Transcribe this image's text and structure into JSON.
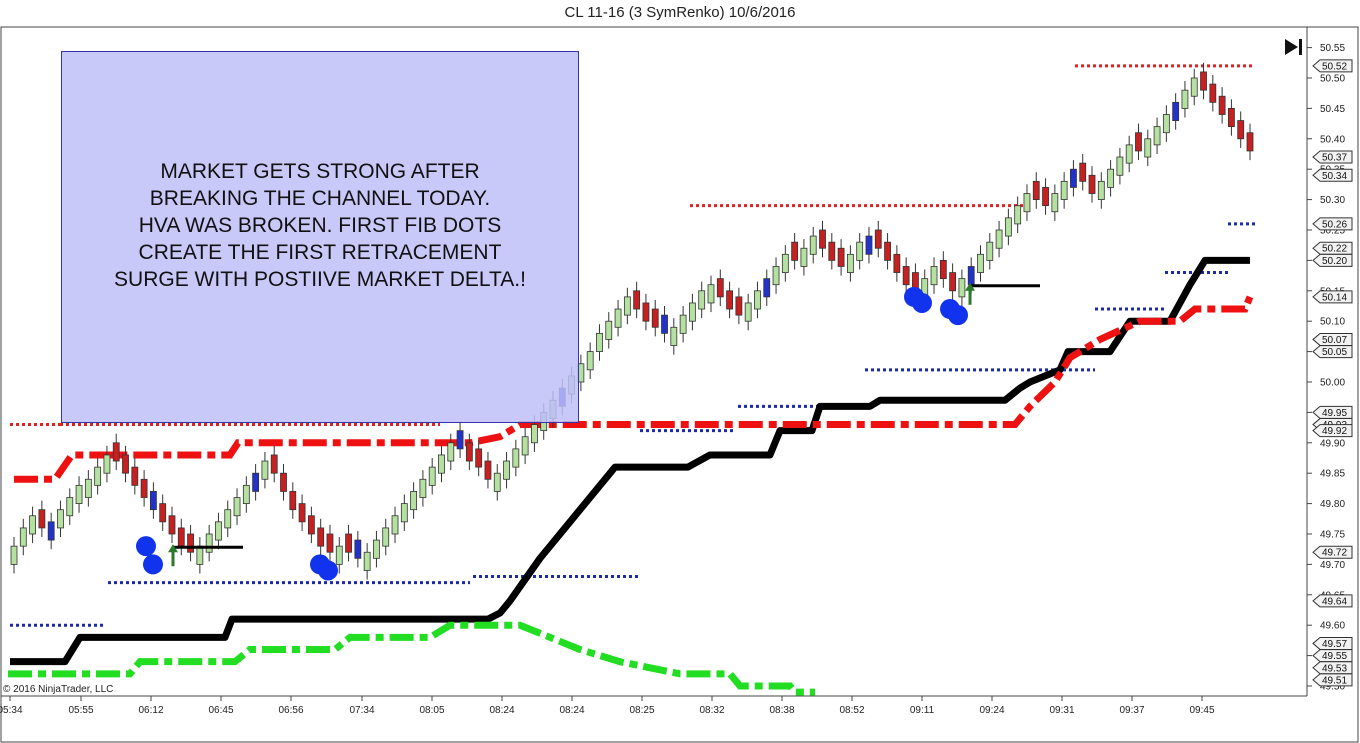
{
  "title": "CL 11-16 (3 SymRenko)  10/6/2016",
  "annotation": [
    "MARKET GETS STRONG AFTER",
    "BREAKING THE CHANNEL TODAY.",
    "HVA WAS BROKEN. FIRST FIB DOTS",
    "CREATE THE FIRST RETRACEMENT",
    "SURGE WITH POSTIIVE MARKET DELTA.!"
  ],
  "copyright": "© 2016 NinjaTrader, LLC",
  "controls": {
    "goto_end_icon": "skip-to-end-icon"
  },
  "colors": {
    "up_candle": "#b4e0a0",
    "down_candle": "#c62020",
    "neutral_candle": "#2233cc",
    "trend_line": "#000000",
    "red_trail": "#ee1111",
    "green_trail": "#22dd22",
    "level_red": "#dd2222",
    "level_blue": "#1a2aaa",
    "fib_dot": "#1133ee",
    "arrow": "#2a7a2a"
  },
  "chart_data": {
    "type": "candlestick",
    "instrument": "CL 11-16",
    "bar_type": "3 SymRenko",
    "date": "10/6/2016",
    "y_axis": {
      "range": [
        49.485,
        50.575
      ],
      "ticks": [
        "49.50",
        "49.55",
        "49.60",
        "49.65",
        "49.70",
        "49.75",
        "49.80",
        "49.85",
        "49.90",
        "49.95",
        "50.00",
        "50.05",
        "50.10",
        "50.15",
        "50.20",
        "50.25",
        "50.30",
        "50.35",
        "50.40",
        "50.45",
        "50.50",
        "50.55"
      ],
      "price_markers": [
        "50.52",
        "50.37",
        "50.34",
        "50.26",
        "50.22",
        "50.20",
        "50.14",
        "50.07",
        "50.05",
        "49.95",
        "49.93",
        "49.92",
        "49.72",
        "49.64",
        "49.57",
        "49.55",
        "49.53",
        "49.51"
      ]
    },
    "x_axis": {
      "labels": [
        "05:34",
        "05:55",
        "06:12",
        "06:45",
        "06:56",
        "07:34",
        "08:05",
        "08:24",
        "08:24",
        "08:25",
        "08:32",
        "08:38",
        "08:52",
        "09:11",
        "09:24",
        "09:31",
        "09:37",
        "09:45"
      ]
    },
    "closes": [
      49.73,
      49.76,
      49.78,
      49.76,
      49.77,
      49.79,
      49.81,
      49.83,
      49.84,
      49.86,
      49.88,
      49.87,
      49.85,
      49.83,
      49.81,
      49.79,
      49.77,
      49.75,
      49.73,
      49.72,
      49.73,
      49.75,
      49.77,
      49.79,
      49.81,
      49.83,
      49.85,
      49.87,
      49.85,
      49.82,
      49.79,
      49.77,
      49.75,
      49.73,
      49.72,
      49.73,
      49.72,
      49.71,
      49.72,
      49.74,
      49.76,
      49.78,
      49.8,
      49.82,
      49.84,
      49.86,
      49.88,
      49.9,
      49.89,
      49.87,
      49.86,
      49.84,
      49.85,
      49.87,
      49.89,
      49.91,
      49.93,
      49.95,
      49.97,
      49.99,
      50.01,
      50.03,
      50.05,
      50.08,
      50.1,
      50.12,
      50.14,
      50.12,
      50.1,
      50.09,
      50.08,
      50.09,
      50.11,
      50.13,
      50.15,
      50.16,
      50.14,
      50.12,
      50.11,
      50.13,
      50.15,
      50.17,
      50.19,
      50.21,
      50.2,
      50.22,
      50.24,
      50.22,
      50.2,
      50.19,
      50.21,
      50.23,
      50.24,
      50.22,
      50.2,
      50.18,
      50.16,
      50.15,
      50.17,
      50.19,
      50.17,
      50.15,
      50.17,
      50.19,
      50.21,
      50.23,
      50.25,
      50.27,
      50.29,
      50.31,
      50.3,
      50.29,
      50.31,
      50.33,
      50.35,
      50.33,
      50.31,
      50.33,
      50.35,
      50.37,
      50.39,
      50.38,
      50.4,
      50.42,
      50.44,
      50.46,
      50.48,
      50.5,
      50.48,
      50.46,
      50.44,
      50.42,
      50.4,
      50.38
    ]
  }
}
